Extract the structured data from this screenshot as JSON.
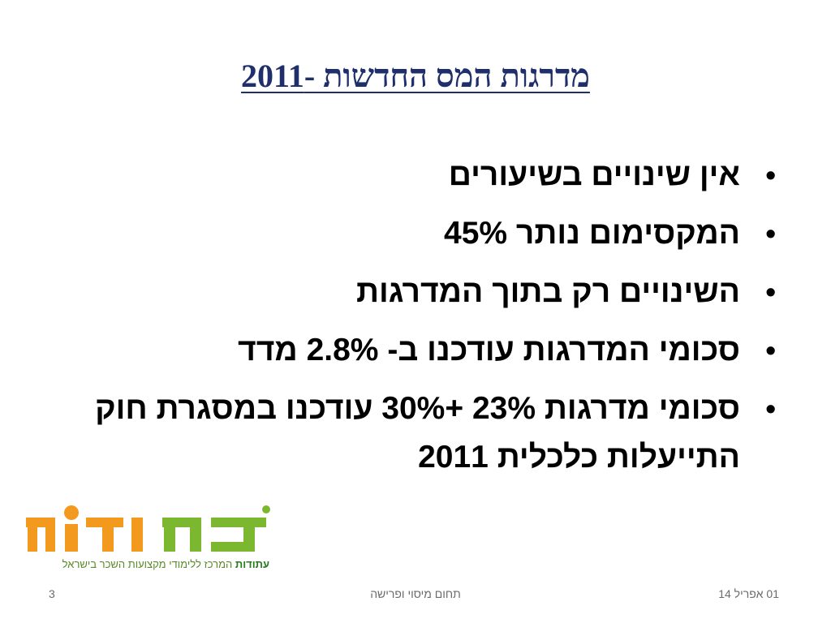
{
  "title": "מדרגות המס החדשות -2011",
  "bullets": [
    "אין שינויים בשיעורים",
    "המקסימום נותר 45%",
    "השינויים רק  בתוך המדרגות",
    "סכומי המדרגות עודכנו ב- 2.8% מדד",
    "סכומי מדרגות 23% +30% עודכנו במסגרת חוק התייעלות כלכלית 2011"
  ],
  "logo": {
    "wordmark": "עת-ודות",
    "tagline_brand": "עתודות",
    "tagline_rest": "המרכז ללימודי מקצועות השכר בישראל",
    "colors": {
      "green": "#7cb82f",
      "orange": "#f39a1e"
    }
  },
  "footer": {
    "page_number": "3",
    "center": "תחום מיסוי ופרישה",
    "date": "01 אפריל 14"
  }
}
